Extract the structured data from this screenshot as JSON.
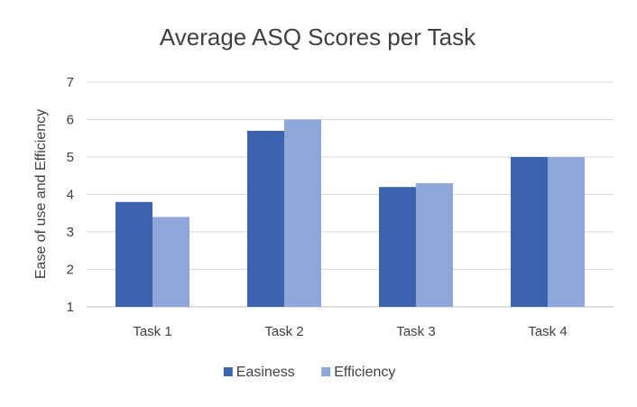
{
  "chart_data": {
    "type": "bar",
    "title": "Average ASQ Scores per Task",
    "xlabel": "",
    "ylabel": "Ease of use and Efficiency",
    "categories": [
      "Task 1",
      "Task 2",
      "Task 3",
      "Task 4"
    ],
    "series": [
      {
        "name": "Easiness",
        "values": [
          3.8,
          5.7,
          4.2,
          5.0
        ],
        "color": "#3C63AE"
      },
      {
        "name": "Efficiency",
        "values": [
          3.4,
          6.0,
          4.3,
          5.0
        ],
        "color": "#8FA6D8"
      }
    ],
    "ylim": [
      1,
      7
    ],
    "yticks": [
      "1",
      "2",
      "3",
      "4",
      "5",
      "6",
      "7"
    ],
    "grid": true,
    "legend_position": "bottom"
  }
}
